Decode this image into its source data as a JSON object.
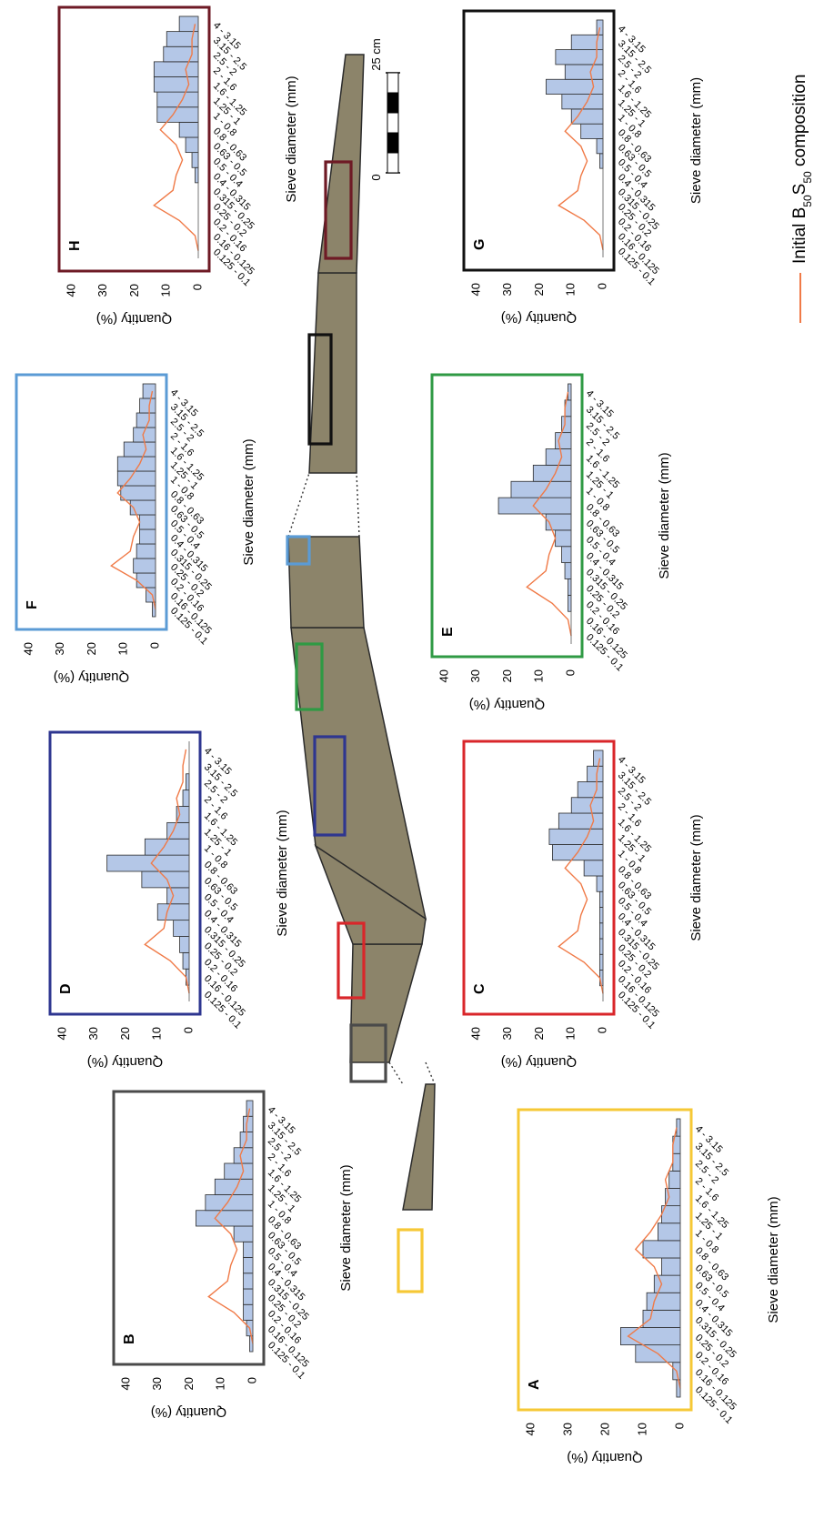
{
  "legend": {
    "prefix": "Initial B",
    "sub1": "50",
    "mid": "S",
    "sub2": "50",
    "suffix": " composition",
    "line_color": "#F07A47"
  },
  "scale_bar": {
    "zero_label": "0",
    "end_label": "25 cm"
  },
  "colors": {
    "bar_fill": "#B4C7E7",
    "bar_stroke": "#2A2A2A",
    "initial_line": "#F07A47",
    "core_fill": "#8C846A",
    "frame_A": "#F6C836",
    "frame_B": "#4A4A4A",
    "frame_C": "#D9262A",
    "frame_D": "#2E3690",
    "frame_E": "#2F9A44",
    "frame_F": "#5B9BD5",
    "frame_G": "#111111",
    "frame_H": "#6E1A25"
  },
  "chart_data": [
    {
      "panel": "A",
      "type": "bar",
      "xlabel": "Sieve diameter (mm)",
      "ylabel": "Quantity (%)",
      "ylim": [
        0,
        40
      ],
      "yticks": [
        0,
        10,
        20,
        30,
        40
      ],
      "categories": [
        "0.125 - 0.1",
        "0.16 - 0.125",
        "0.2 - 0.16",
        "0.25 - 0.2",
        "0.315 - 0.25",
        "0.4 - 0.315",
        "0.5 - 0.4",
        "0.63 - 0.5",
        "0.8 - 0.63",
        "1 - 0.8",
        "1.25 - 1",
        "1.6 - 1.25",
        "2 - 1.6",
        "2.5 - 2",
        "3.15 - 2.5",
        "4 - 3.15"
      ],
      "series": [
        {
          "kind": "bar",
          "values": [
            1,
            2,
            12,
            16,
            10,
            9,
            7,
            5,
            10,
            6,
            5,
            4,
            3,
            2,
            2,
            1
          ]
        },
        {
          "kind": "line",
          "values": [
            0,
            1,
            6,
            14,
            8,
            7,
            5,
            7,
            12,
            8,
            5,
            3,
            4,
            2,
            2,
            1
          ]
        }
      ]
    },
    {
      "panel": "B",
      "type": "bar",
      "xlabel": "Sieve diameter (mm)",
      "ylabel": "Quantity (%)",
      "ylim": [
        0,
        40
      ],
      "yticks": [
        0,
        10,
        20,
        30,
        40
      ],
      "categories": [
        "0.125 - 0.1",
        "0.16 - 0.125",
        "0.2 - 0.16",
        "0.25 - 0.2",
        "0.315 - 0.25",
        "0.4 - 0.315",
        "0.5 - 0.4",
        "0.63 - 0.5",
        "0.8 - 0.63",
        "1 - 0.8",
        "1.25 - 1",
        "1.6 - 1.25",
        "2 - 1.6",
        "2.5 - 2",
        "3.15 - 2.5",
        "4 - 3.15"
      ],
      "series": [
        {
          "kind": "bar",
          "values": [
            1,
            2,
            3,
            3,
            3,
            3,
            3,
            6,
            18,
            15,
            12,
            9,
            6,
            4,
            3,
            2
          ]
        },
        {
          "kind": "line",
          "values": [
            0,
            1,
            6,
            14,
            8,
            7,
            5,
            7,
            12,
            8,
            5,
            3,
            4,
            2,
            2,
            1
          ]
        }
      ]
    },
    {
      "panel": "C",
      "type": "bar",
      "xlabel": "Sieve diameter (mm)",
      "ylabel": "Quantity (%)",
      "ylim": [
        0,
        40
      ],
      "yticks": [
        0,
        10,
        20,
        30,
        40
      ],
      "categories": [
        "0.125 - 0.1",
        "0.16 - 0.125",
        "0.2 - 0.16",
        "0.25 - 0.2",
        "0.315 - 0.25",
        "0.4 - 0.315",
        "0.5 - 0.4",
        "0.63 - 0.5",
        "0.8 - 0.63",
        "1 - 0.8",
        "1.25 - 1",
        "1.6 - 1.25",
        "2 - 1.6",
        "2.5 - 2",
        "3.15 - 2.5",
        "4 - 3.15"
      ],
      "series": [
        {
          "kind": "bar",
          "values": [
            0,
            1,
            1,
            1,
            1,
            1,
            1,
            2,
            6,
            16,
            17,
            14,
            10,
            8,
            5,
            3
          ]
        },
        {
          "kind": "line",
          "values": [
            0,
            1,
            6,
            14,
            8,
            7,
            5,
            7,
            12,
            8,
            5,
            3,
            4,
            2,
            2,
            1
          ]
        }
      ]
    },
    {
      "panel": "D",
      "type": "bar",
      "xlabel": "Sieve diameter (mm)",
      "ylabel": "Quantity (%)",
      "ylim": [
        0,
        40
      ],
      "yticks": [
        0,
        10,
        20,
        30,
        40
      ],
      "categories": [
        "0.125 - 0.1",
        "0.16 - 0.125",
        "0.2 - 0.16",
        "0.25 - 0.2",
        "0.315 - 0.25",
        "0.4 - 0.315",
        "0.5 - 0.4",
        "0.63 - 0.5",
        "0.8 - 0.63",
        "1 - 0.8",
        "1.25 - 1",
        "1.6 - 1.25",
        "2 - 1.6",
        "2.5 - 2",
        "3.15 - 2.5",
        "4 - 3.15"
      ],
      "series": [
        {
          "kind": "bar",
          "values": [
            0,
            1,
            2,
            3,
            5,
            10,
            7,
            15,
            26,
            14,
            7,
            4,
            2,
            1,
            0,
            0
          ]
        },
        {
          "kind": "line",
          "values": [
            0,
            1,
            6,
            14,
            8,
            7,
            5,
            7,
            12,
            8,
            5,
            3,
            4,
            2,
            2,
            1
          ]
        }
      ]
    },
    {
      "panel": "E",
      "type": "bar",
      "xlabel": "Sieve diameter (mm)",
      "ylabel": "Quantity (%)",
      "ylim": [
        0,
        40
      ],
      "yticks": [
        0,
        10,
        20,
        30,
        40
      ],
      "categories": [
        "0.125 - 0.1",
        "0.16 - 0.125",
        "0.2 - 0.16",
        "0.25 - 0.2",
        "0.315 - 0.25",
        "0.4 - 0.315",
        "0.5 - 0.4",
        "0.63 - 0.5",
        "0.8 - 0.63",
        "1 - 0.8",
        "1.25 - 1",
        "1.6 - 1.25",
        "2 - 1.6",
        "2.5 - 2",
        "3.15 - 2.5",
        "4 - 3.15"
      ],
      "series": [
        {
          "kind": "bar",
          "values": [
            0,
            0,
            1,
            1,
            2,
            3,
            5,
            8,
            23,
            19,
            12,
            8,
            5,
            3,
            2,
            1
          ]
        },
        {
          "kind": "line",
          "values": [
            0,
            1,
            6,
            14,
            8,
            7,
            5,
            7,
            12,
            8,
            5,
            3,
            4,
            2,
            2,
            1
          ]
        }
      ]
    },
    {
      "panel": "F",
      "type": "bar",
      "xlabel": "Sieve diameter (mm)",
      "ylabel": "Quantity (%)",
      "ylim": [
        0,
        40
      ],
      "yticks": [
        0,
        10,
        20,
        30,
        40
      ],
      "categories": [
        "0.125 - 0.1",
        "0.16 - 0.125",
        "0.2 - 0.16",
        "0.25 - 0.2",
        "0.315 - 0.25",
        "0.4 - 0.315",
        "0.5 - 0.4",
        "0.63 - 0.5",
        "0.8 - 0.63",
        "1 - 0.8",
        "1.25 - 1",
        "1.6 - 1.25",
        "2 - 1.6",
        "2.5 - 2",
        "3.15 - 2.5",
        "4 - 3.15"
      ],
      "series": [
        {
          "kind": "bar",
          "values": [
            1,
            3,
            6,
            7,
            6,
            5,
            5,
            8,
            11,
            12,
            12,
            10,
            7,
            6,
            5,
            4
          ]
        },
        {
          "kind": "line",
          "values": [
            0,
            1,
            6,
            14,
            8,
            7,
            5,
            7,
            12,
            8,
            5,
            3,
            4,
            2,
            2,
            1
          ]
        }
      ]
    },
    {
      "panel": "G",
      "type": "bar",
      "xlabel": "Sieve diameter (mm)",
      "ylabel": "Quantity (%)",
      "ylim": [
        0,
        40
      ],
      "yticks": [
        0,
        10,
        20,
        30,
        40
      ],
      "categories": [
        "0.125 - 0.1",
        "0.16 - 0.125",
        "0.2 - 0.16",
        "0.25 - 0.2",
        "0.315 - 0.25",
        "0.4 - 0.315",
        "0.5 - 0.4",
        "0.63 - 0.5",
        "0.8 - 0.63",
        "1 - 0.8",
        "1.25 - 1",
        "1.6 - 1.25",
        "2 - 1.6",
        "2.5 - 2",
        "3.15 - 2.5",
        "4 - 3.15"
      ],
      "series": [
        {
          "kind": "bar",
          "values": [
            0,
            0,
            0,
            0,
            0,
            0,
            1,
            2,
            7,
            10,
            13,
            18,
            12,
            15,
            10,
            2
          ]
        },
        {
          "kind": "line",
          "values": [
            0,
            1,
            6,
            14,
            8,
            7,
            5,
            7,
            12,
            8,
            5,
            3,
            4,
            2,
            2,
            1
          ]
        }
      ]
    },
    {
      "panel": "H",
      "type": "bar",
      "xlabel": "Sieve diameter (mm)",
      "ylabel": "Quantity (%)",
      "ylim": [
        0,
        40
      ],
      "yticks": [
        0,
        10,
        20,
        30,
        40
      ],
      "categories": [
        "0.125 - 0.1",
        "0.16 - 0.125",
        "0.2 - 0.16",
        "0.25 - 0.2",
        "0.315 - 0.25",
        "0.4 - 0.315",
        "0.5 - 0.4",
        "0.63 - 0.5",
        "0.8 - 0.63",
        "1 - 0.8",
        "1.25 - 1",
        "1.6 - 1.25",
        "2 - 1.6",
        "2.5 - 2",
        "3.15 - 2.5",
        "4 - 3.15"
      ],
      "series": [
        {
          "kind": "bar",
          "values": [
            0,
            0,
            0,
            0,
            0,
            1,
            2,
            4,
            6,
            13,
            13,
            14,
            14,
            11,
            10,
            6
          ]
        },
        {
          "kind": "line",
          "values": [
            0,
            1,
            6,
            14,
            8,
            7,
            5,
            7,
            12,
            8,
            5,
            3,
            4,
            2,
            2,
            1
          ]
        }
      ]
    }
  ]
}
